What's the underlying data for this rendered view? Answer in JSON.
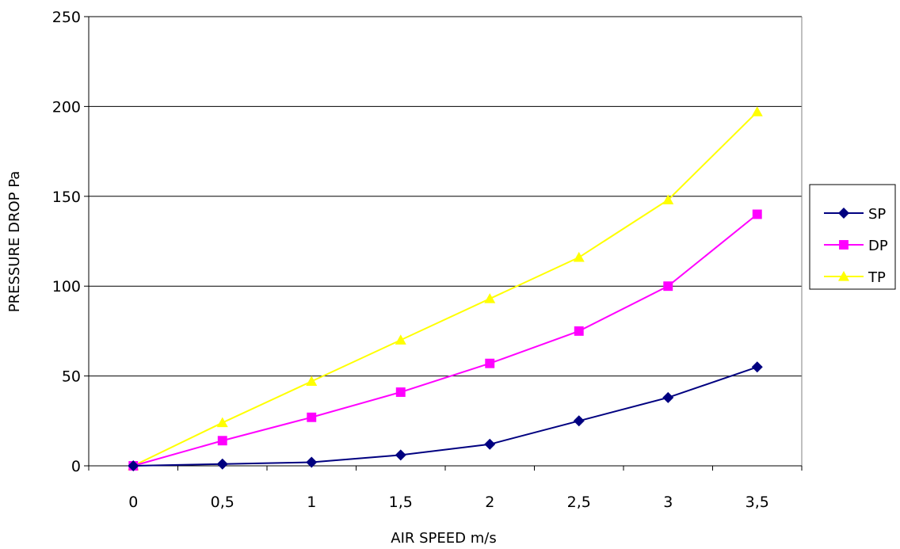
{
  "chart_data": {
    "type": "line",
    "title": "",
    "xlabel": "AIR SPEED m/s",
    "ylabel": "PRESSURE DROP Pa",
    "categories": [
      "0",
      "0,5",
      "1",
      "1,5",
      "2",
      "2,5",
      "3",
      "3,5"
    ],
    "ylim": [
      0,
      250
    ],
    "yticks": [
      "0",
      "50",
      "100",
      "150",
      "200",
      "250"
    ],
    "grid": "horizontal",
    "legend_position": "right",
    "series": [
      {
        "name": "SP",
        "color": "#000080",
        "marker": "diamond",
        "values": [
          0,
          1,
          2,
          6,
          12,
          25,
          38,
          55
        ]
      },
      {
        "name": "DP",
        "color": "#ff00ff",
        "marker": "square",
        "values": [
          0,
          14,
          27,
          41,
          57,
          75,
          100,
          140
        ]
      },
      {
        "name": "TP",
        "color": "#ffff00",
        "marker": "triangle",
        "values": [
          0,
          24,
          47,
          70,
          93,
          116,
          148,
          197
        ]
      }
    ]
  }
}
